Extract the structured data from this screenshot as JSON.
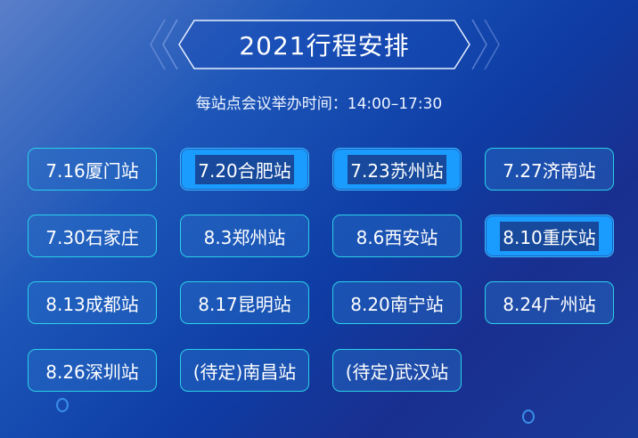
{
  "header": {
    "title": "2021行程安排",
    "subtitle": "每站点会议举办时间：14:00–17:30"
  },
  "stations": [
    {
      "label": "7.16厦门站",
      "highlighted": false
    },
    {
      "label": "7.20合肥站",
      "highlighted": true
    },
    {
      "label": "7.23苏州站",
      "highlighted": true
    },
    {
      "label": "7.27济南站",
      "highlighted": false
    },
    {
      "label": "7.30石家庄",
      "highlighted": false
    },
    {
      "label": "8.3郑州站",
      "highlighted": false
    },
    {
      "label": "8.6西安站",
      "highlighted": false
    },
    {
      "label": "8.10重庆站",
      "highlighted": true
    },
    {
      "label": "8.13成都站",
      "highlighted": false
    },
    {
      "label": "8.17昆明站",
      "highlighted": false
    },
    {
      "label": "8.20南宁站",
      "highlighted": false
    },
    {
      "label": "8.24广州站",
      "highlighted": false
    },
    {
      "label": "8.26深圳站",
      "highlighted": false
    },
    {
      "label": "(待定)南昌站",
      "highlighted": false
    },
    {
      "label": "(待定)武汉站",
      "highlighted": false
    }
  ],
  "colors": {
    "border": "#2ad0e8",
    "highlight": "#1a9cff",
    "background": "#0e3ea6"
  }
}
